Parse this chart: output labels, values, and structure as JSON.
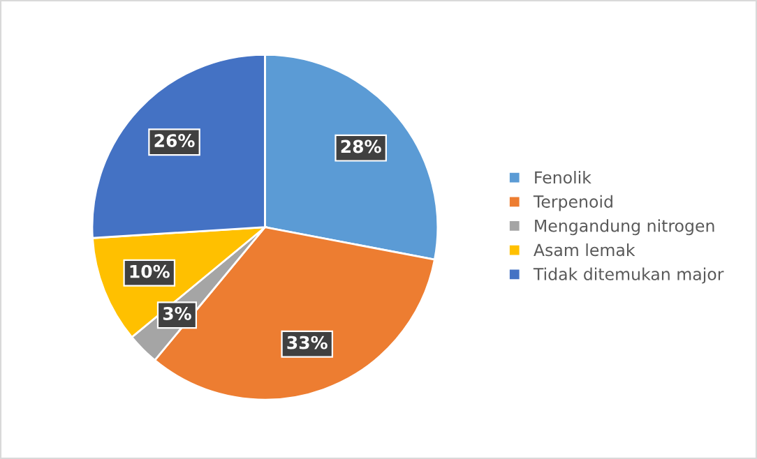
{
  "chart_data": {
    "type": "pie",
    "categories": [
      "Fenolik",
      "Terpenoid",
      "Mengandung nitrogen",
      "Asam lemak",
      "Tidak ditemukan major"
    ],
    "values": [
      28,
      33,
      3,
      10,
      26
    ],
    "colors": [
      "#5b9bd5",
      "#ed7d31",
      "#a5a5a5",
      "#ffc000",
      "#4472c4"
    ],
    "value_labels": [
      "28%",
      "33%",
      "3%",
      "10%",
      "26%"
    ],
    "legend": "right"
  }
}
